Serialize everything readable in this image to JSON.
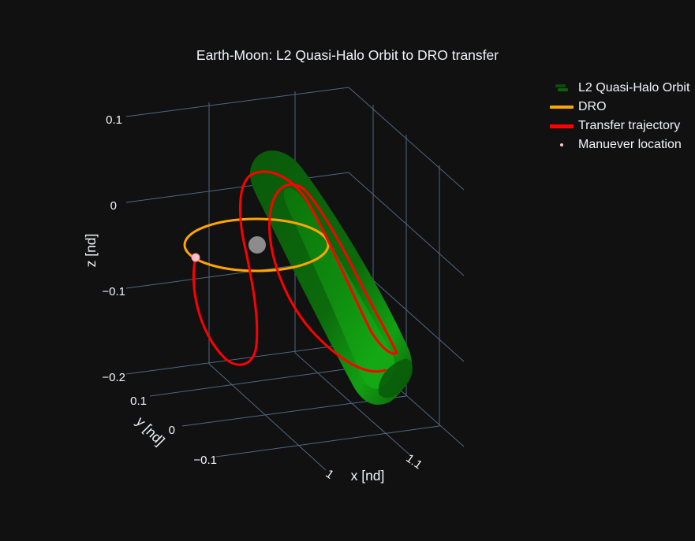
{
  "chart_data": {
    "type": "scatter3d",
    "title": "Earth-Moon: L2 Quasi-Halo Orbit to DRO transfer",
    "axes": {
      "x": {
        "label": "x [nd]",
        "ticks": [
          "1",
          "1.1"
        ]
      },
      "y": {
        "label": "y [nd]",
        "ticks": [
          "0.1",
          "0",
          "−0.1"
        ]
      },
      "z": {
        "label": "z [nd]",
        "ticks": [
          "0.1",
          "0",
          "−0.1",
          "−0.2"
        ]
      }
    },
    "legend": {
      "placement": "top-right",
      "entries": [
        {
          "name": "L2 Quasi-Halo Orbit",
          "kind": "surface",
          "color": "#0b6e0b"
        },
        {
          "name": "DRO",
          "kind": "line",
          "color": "#ffa500"
        },
        {
          "name": "Transfer trajectory",
          "kind": "line",
          "color": "#ff0000"
        },
        {
          "name": "Manuever location",
          "kind": "marker",
          "color": "#ffc0cb"
        }
      ]
    },
    "colors": {
      "background": "#111111",
      "grid": "#506784",
      "halo_dark": "#0b5e0b",
      "halo_light": "#1fa51f",
      "moon": "#8c8c8c"
    }
  }
}
